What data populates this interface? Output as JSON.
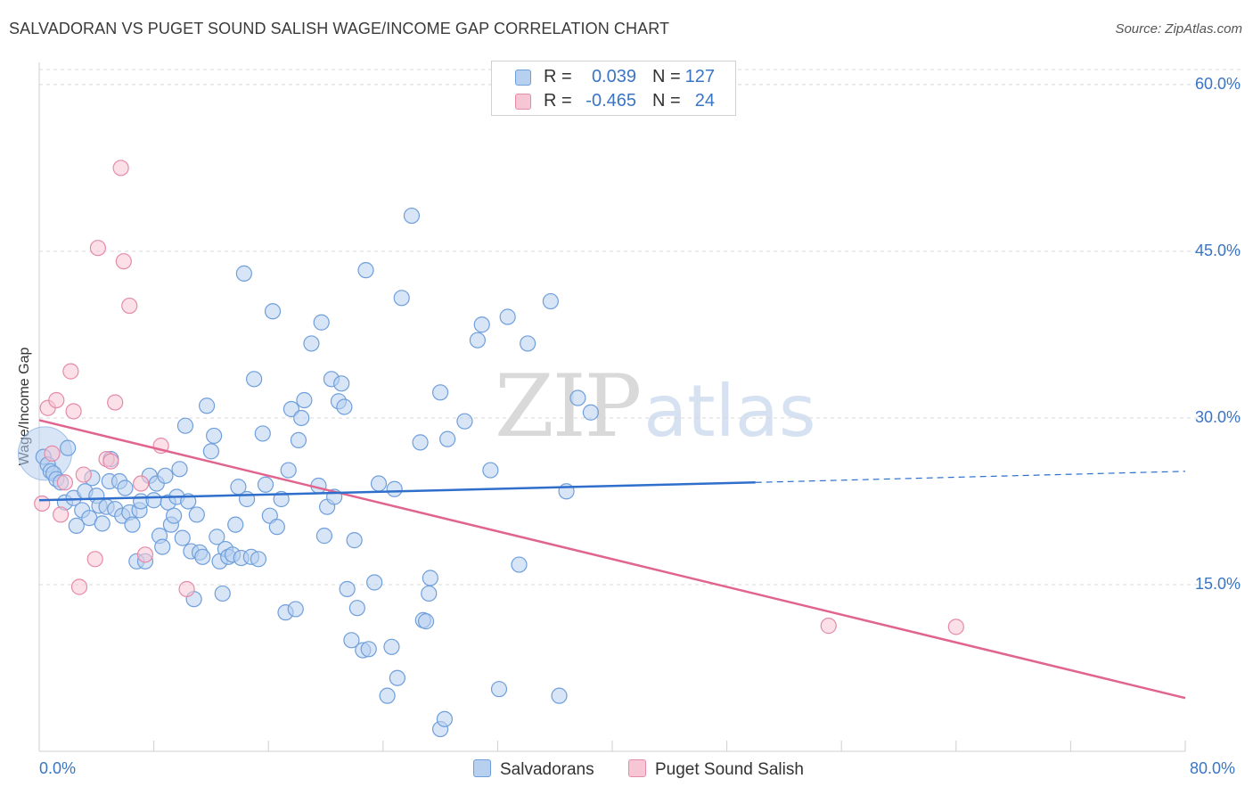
{
  "header": {
    "title": "SALVADORAN VS PUGET SOUND SALISH WAGE/INCOME GAP CORRELATION CHART",
    "source": "Source: ZipAtlas.com"
  },
  "watermark": {
    "zip": "ZIP",
    "atlas": "atlas"
  },
  "legend_top": {
    "rows": [
      {
        "r_label": "R =",
        "r_value": "0.039",
        "n_label": "N =",
        "n_value": "127"
      },
      {
        "r_label": "R =",
        "r_value": "-0.465",
        "n_label": "N =",
        "n_value": "24"
      }
    ]
  },
  "legend_bottom": {
    "items": [
      "Salvadorans",
      "Puget Sound Salish"
    ]
  },
  "colors": {
    "blue_fill": "#b7d0f0",
    "blue_stroke": "#6f9fdb",
    "blue_line": "#2f6fcb",
    "pink_fill": "#f7c6d5",
    "pink_stroke": "#e58aa8",
    "pink_line": "#e0648f",
    "tick_text": "#3a75c4",
    "grid": "#d8d8d8"
  },
  "chart_data": {
    "type": "scatter",
    "title": "SALVADORAN VS PUGET SOUND SALISH WAGE/INCOME GAP CORRELATION CHART",
    "xlabel": "",
    "ylabel": "Wage/Income Gap",
    "xlim": [
      0,
      80
    ],
    "ylim": [
      0,
      62
    ],
    "x_tick_labels": [
      "0.0%",
      "80.0%"
    ],
    "y_ticks": [
      15,
      30,
      45,
      60
    ],
    "y_tick_labels": [
      "15.0%",
      "30.0%",
      "45.0%",
      "60.0%"
    ],
    "grid": true,
    "legend_position": "top-center",
    "series": [
      {
        "name": "Salvadorans",
        "r": 0.039,
        "n": 127,
        "trend": {
          "x0": 0,
          "y0": 22.6,
          "x1": 50,
          "y1": 24.2,
          "dash_to_x": 80,
          "dash_to_y": 25.2
        },
        "points": [
          [
            0.3,
            26.5
          ],
          [
            0.6,
            25.8
          ],
          [
            0.8,
            25.2
          ],
          [
            1.0,
            25.0
          ],
          [
            1.2,
            24.5
          ],
          [
            1.5,
            24.2
          ],
          [
            1.8,
            22.4
          ],
          [
            2.0,
            27.3
          ],
          [
            2.4,
            22.8
          ],
          [
            2.6,
            20.3
          ],
          [
            3.0,
            21.7
          ],
          [
            3.2,
            23.4
          ],
          [
            3.5,
            21.0
          ],
          [
            3.7,
            24.6
          ],
          [
            4.0,
            23.0
          ],
          [
            4.2,
            22.1
          ],
          [
            4.4,
            20.5
          ],
          [
            4.7,
            22.0
          ],
          [
            4.9,
            24.3
          ],
          [
            5.0,
            26.3
          ],
          [
            5.3,
            21.8
          ],
          [
            5.6,
            24.3
          ],
          [
            5.8,
            21.2
          ],
          [
            6.0,
            23.7
          ],
          [
            6.3,
            21.5
          ],
          [
            6.5,
            20.4
          ],
          [
            6.8,
            17.1
          ],
          [
            7.0,
            21.7
          ],
          [
            7.1,
            22.5
          ],
          [
            7.4,
            17.1
          ],
          [
            7.7,
            24.8
          ],
          [
            8.0,
            22.6
          ],
          [
            8.2,
            24.1
          ],
          [
            8.4,
            19.4
          ],
          [
            8.6,
            18.4
          ],
          [
            8.8,
            24.8
          ],
          [
            9.0,
            22.4
          ],
          [
            9.2,
            20.4
          ],
          [
            9.4,
            21.2
          ],
          [
            9.6,
            22.9
          ],
          [
            9.8,
            25.4
          ],
          [
            10.0,
            19.2
          ],
          [
            10.2,
            29.3
          ],
          [
            10.4,
            22.5
          ],
          [
            10.6,
            18.0
          ],
          [
            10.8,
            13.7
          ],
          [
            11.0,
            21.3
          ],
          [
            11.2,
            17.9
          ],
          [
            11.4,
            17.5
          ],
          [
            11.7,
            31.1
          ],
          [
            12.0,
            27.0
          ],
          [
            12.2,
            28.4
          ],
          [
            12.4,
            19.3
          ],
          [
            12.6,
            17.1
          ],
          [
            12.8,
            14.2
          ],
          [
            13.0,
            18.2
          ],
          [
            13.2,
            17.5
          ],
          [
            13.5,
            17.7
          ],
          [
            13.7,
            20.4
          ],
          [
            13.9,
            23.8
          ],
          [
            14.1,
            17.4
          ],
          [
            14.3,
            43.0
          ],
          [
            14.5,
            22.7
          ],
          [
            14.8,
            17.5
          ],
          [
            15.0,
            33.5
          ],
          [
            15.3,
            17.3
          ],
          [
            15.6,
            28.6
          ],
          [
            15.8,
            24.0
          ],
          [
            16.1,
            21.2
          ],
          [
            16.3,
            39.6
          ],
          [
            16.6,
            20.2
          ],
          [
            16.9,
            22.7
          ],
          [
            17.2,
            12.5
          ],
          [
            17.4,
            25.3
          ],
          [
            17.6,
            30.8
          ],
          [
            17.9,
            12.8
          ],
          [
            18.1,
            28.0
          ],
          [
            18.3,
            30.0
          ],
          [
            18.5,
            31.6
          ],
          [
            19.0,
            36.7
          ],
          [
            19.5,
            23.9
          ],
          [
            19.7,
            38.6
          ],
          [
            19.9,
            19.4
          ],
          [
            20.1,
            22.0
          ],
          [
            20.4,
            33.5
          ],
          [
            20.6,
            22.9
          ],
          [
            20.9,
            31.5
          ],
          [
            21.1,
            33.1
          ],
          [
            21.3,
            31.0
          ],
          [
            21.5,
            14.6
          ],
          [
            21.8,
            10.0
          ],
          [
            22.0,
            19.0
          ],
          [
            22.2,
            12.9
          ],
          [
            22.6,
            9.1
          ],
          [
            22.8,
            43.3
          ],
          [
            23.0,
            9.2
          ],
          [
            23.4,
            15.2
          ],
          [
            23.7,
            24.1
          ],
          [
            24.3,
            5.0
          ],
          [
            24.6,
            9.4
          ],
          [
            24.8,
            23.6
          ],
          [
            25.0,
            6.6
          ],
          [
            25.3,
            40.8
          ],
          [
            26.0,
            48.2
          ],
          [
            26.6,
            27.8
          ],
          [
            26.8,
            11.8
          ],
          [
            27.0,
            11.7
          ],
          [
            27.2,
            14.2
          ],
          [
            27.3,
            15.6
          ],
          [
            28.0,
            2.0
          ],
          [
            28.3,
            2.9
          ],
          [
            28.0,
            32.3
          ],
          [
            28.5,
            28.1
          ],
          [
            29.7,
            29.7
          ],
          [
            30.6,
            37.0
          ],
          [
            30.9,
            38.4
          ],
          [
            31.5,
            25.3
          ],
          [
            32.1,
            5.6
          ],
          [
            32.7,
            39.1
          ],
          [
            33.5,
            16.8
          ],
          [
            34.1,
            36.7
          ],
          [
            35.7,
            40.5
          ],
          [
            36.3,
            5.0
          ],
          [
            36.8,
            23.4
          ],
          [
            37.6,
            31.8
          ],
          [
            38.5,
            30.5
          ]
        ]
      },
      {
        "name": "Puget Sound Salish",
        "r": -0.465,
        "n": 24,
        "trend": {
          "x0": 0,
          "y0": 29.8,
          "x1": 80,
          "y1": 4.8
        },
        "points": [
          [
            0.2,
            22.3
          ],
          [
            0.6,
            30.9
          ],
          [
            0.9,
            26.8
          ],
          [
            1.2,
            31.6
          ],
          [
            1.5,
            21.3
          ],
          [
            1.8,
            24.2
          ],
          [
            2.2,
            34.2
          ],
          [
            2.4,
            30.6
          ],
          [
            2.8,
            14.8
          ],
          [
            3.1,
            24.9
          ],
          [
            3.9,
            17.3
          ],
          [
            4.1,
            45.3
          ],
          [
            4.7,
            26.3
          ],
          [
            5.0,
            26.1
          ],
          [
            5.3,
            31.4
          ],
          [
            5.7,
            52.5
          ],
          [
            5.9,
            44.1
          ],
          [
            6.3,
            40.1
          ],
          [
            7.1,
            24.1
          ],
          [
            7.4,
            17.7
          ],
          [
            8.5,
            27.5
          ],
          [
            10.3,
            14.6
          ],
          [
            55.1,
            11.3
          ],
          [
            64.0,
            11.2
          ]
        ]
      }
    ]
  }
}
